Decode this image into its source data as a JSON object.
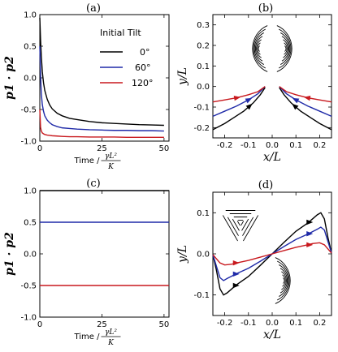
{
  "chart_data": [
    {
      "panel": "(a)",
      "type": "line",
      "ylabel": "p1 · p2",
      "xlabel": "Time /",
      "xlabel_frac": {
        "num": "γL²",
        "den": "K"
      },
      "xlim": [
        0,
        52
      ],
      "ylim": [
        -1.0,
        1.0
      ],
      "xticks": [
        "0",
        "25",
        "50"
      ],
      "yticks": [
        "1.0",
        "0.5",
        "0.0",
        "-0.5",
        "-1.0"
      ],
      "legend_title": "Initial Tilt",
      "legend_position": "top-right",
      "series": [
        {
          "name": "0°",
          "color": "#000000",
          "x": [
            0,
            0.3,
            0.6,
            1,
            1.5,
            2,
            3,
            4,
            5,
            7,
            9,
            12,
            15,
            20,
            25,
            30,
            35,
            40,
            45,
            50
          ],
          "y": [
            0.95,
            0.6,
            0.35,
            0.1,
            -0.08,
            -0.2,
            -0.34,
            -0.43,
            -0.49,
            -0.56,
            -0.6,
            -0.64,
            -0.66,
            -0.69,
            -0.71,
            -0.72,
            -0.73,
            -0.74,
            -0.745,
            -0.75
          ]
        },
        {
          "name": "60°",
          "color": "#1f2aa8",
          "x": [
            0,
            0.3,
            0.6,
            1,
            1.5,
            2,
            3,
            4,
            5,
            7,
            9,
            12,
            15,
            20,
            25,
            30,
            35,
            40,
            45,
            50
          ],
          "y": [
            0.5,
            0.05,
            -0.25,
            -0.42,
            -0.53,
            -0.6,
            -0.67,
            -0.71,
            -0.74,
            -0.77,
            -0.79,
            -0.8,
            -0.81,
            -0.82,
            -0.825,
            -0.83,
            -0.83,
            -0.835,
            -0.835,
            -0.84
          ]
        },
        {
          "name": "120°",
          "color": "#c8191e",
          "x": [
            0,
            0.3,
            0.6,
            1,
            1.5,
            2,
            3,
            4,
            5,
            7,
            9,
            12,
            15,
            20,
            25,
            30,
            35,
            40,
            45,
            50
          ],
          "y": [
            -0.5,
            -0.78,
            -0.84,
            -0.87,
            -0.885,
            -0.895,
            -0.905,
            -0.91,
            -0.915,
            -0.92,
            -0.925,
            -0.93,
            -0.93,
            -0.935,
            -0.935,
            -0.935,
            -0.94,
            -0.94,
            -0.94,
            -0.94
          ]
        }
      ]
    },
    {
      "panel": "(b)",
      "type": "line",
      "xlabel": "x/L",
      "ylabel": "y/L",
      "xlim": [
        -0.25,
        0.25
      ],
      "ylim": [
        -0.25,
        0.35
      ],
      "xticks": [
        "-0.2",
        "-0.1",
        "0.0",
        "0.1",
        "0.2"
      ],
      "yticks": [
        "0.3",
        "0.2",
        "0.1",
        "0.0",
        "-0.1",
        "-0.2"
      ],
      "series": [
        {
          "name": "",
          "color": "#000000",
          "arrow_at": 0.4,
          "x": [
            -0.03,
            -0.05,
            -0.08,
            -0.12,
            -0.16,
            -0.2,
            -0.25
          ],
          "y": [
            -0.005,
            -0.04,
            -0.08,
            -0.12,
            -0.15,
            -0.18,
            -0.21
          ]
        },
        {
          "name": "",
          "color": "#1f2aa8",
          "arrow_at": 0.4,
          "x": [
            -0.03,
            -0.06,
            -0.1,
            -0.15,
            -0.2,
            -0.25
          ],
          "y": [
            0.0,
            -0.035,
            -0.065,
            -0.095,
            -0.12,
            -0.145
          ]
        },
        {
          "name": "",
          "color": "#c8191e",
          "arrow_at": 0.6,
          "x": [
            -0.03,
            -0.06,
            -0.1,
            -0.15,
            -0.2,
            -0.25
          ],
          "y": [
            0.0,
            -0.025,
            -0.04,
            -0.055,
            -0.065,
            -0.075
          ]
        },
        {
          "name": "",
          "color": "#000000",
          "arrow_at": 0.4,
          "x": [
            0.03,
            0.05,
            0.08,
            0.12,
            0.16,
            0.2,
            0.25
          ],
          "y": [
            -0.005,
            -0.04,
            -0.08,
            -0.12,
            -0.15,
            -0.18,
            -0.21
          ]
        },
        {
          "name": "",
          "color": "#1f2aa8",
          "arrow_at": 0.4,
          "x": [
            0.03,
            0.06,
            0.1,
            0.15,
            0.2,
            0.25
          ],
          "y": [
            0.0,
            -0.035,
            -0.065,
            -0.095,
            -0.12,
            -0.145
          ]
        },
        {
          "name": "",
          "color": "#c8191e",
          "arrow_at": 0.6,
          "x": [
            0.03,
            0.06,
            0.1,
            0.15,
            0.2,
            0.25
          ],
          "y": [
            0.0,
            -0.025,
            -0.04,
            -0.055,
            -0.065,
            -0.075
          ]
        }
      ]
    },
    {
      "panel": "(c)",
      "type": "line",
      "ylabel": "p1 · p2",
      "xlabel": "Time /",
      "xlabel_frac": {
        "num": "γL²",
        "den": "K"
      },
      "xlim": [
        0,
        52
      ],
      "ylim": [
        -1.0,
        1.0
      ],
      "xticks": [
        "0",
        "25",
        "50"
      ],
      "yticks": [
        "1.0",
        "0.5",
        "0.0",
        "-0.5",
        "-1.0"
      ],
      "series": [
        {
          "name": "0°",
          "color": "#000000",
          "x": [
            0,
            52
          ],
          "y": [
            1.0,
            1.0
          ]
        },
        {
          "name": "60°",
          "color": "#1f2aa8",
          "x": [
            0,
            52
          ],
          "y": [
            0.5,
            0.5
          ]
        },
        {
          "name": "120°",
          "color": "#c8191e",
          "x": [
            0,
            52
          ],
          "y": [
            -0.5,
            -0.5
          ]
        }
      ]
    },
    {
      "panel": "(d)",
      "type": "line",
      "xlabel": "x/L",
      "ylabel": "y/L",
      "xlim": [
        -0.25,
        0.25
      ],
      "ylim": [
        -0.15,
        0.15
      ],
      "xticks": [
        "-0.2",
        "-0.1",
        "0.0",
        "0.1",
        "0.2"
      ],
      "yticks": [
        "0.1",
        "0.0",
        "-0.1"
      ],
      "series": [
        {
          "name": "",
          "color": "#000000",
          "x": [
            -0.25,
            -0.235,
            -0.22,
            -0.205,
            -0.19,
            -0.17,
            -0.15,
            -0.1,
            -0.05,
            0,
            0.05,
            0.1,
            0.15,
            0.17,
            0.19,
            0.205,
            0.22,
            0.235,
            0.25
          ],
          "y": [
            -0.002,
            -0.04,
            -0.085,
            -0.1,
            -0.095,
            -0.085,
            -0.075,
            -0.055,
            -0.028,
            0,
            0.028,
            0.055,
            0.075,
            0.085,
            0.095,
            0.1,
            0.085,
            0.04,
            0.002
          ]
        },
        {
          "name": "",
          "color": "#1f2aa8",
          "x": [
            -0.25,
            -0.235,
            -0.22,
            -0.205,
            -0.19,
            -0.17,
            -0.15,
            -0.1,
            -0.05,
            0,
            0.05,
            0.1,
            0.15,
            0.17,
            0.19,
            0.205,
            0.22,
            0.235,
            0.25
          ],
          "y": [
            -0.002,
            -0.03,
            -0.058,
            -0.065,
            -0.06,
            -0.054,
            -0.048,
            -0.035,
            -0.018,
            0,
            0.018,
            0.035,
            0.048,
            0.054,
            0.06,
            0.065,
            0.058,
            0.03,
            0.002
          ]
        },
        {
          "name": "",
          "color": "#c8191e",
          "x": [
            -0.25,
            -0.235,
            -0.22,
            -0.2,
            -0.17,
            -0.15,
            -0.1,
            -0.05,
            0,
            0.05,
            0.1,
            0.15,
            0.17,
            0.2,
            0.22,
            0.235,
            0.25
          ],
          "y": [
            -0.002,
            -0.012,
            -0.022,
            -0.027,
            -0.025,
            -0.022,
            -0.016,
            -0.008,
            0,
            0.008,
            0.016,
            0.022,
            0.025,
            0.027,
            0.022,
            0.012,
            0.002
          ]
        }
      ],
      "arrows": [
        {
          "color": "#000000",
          "x": -0.155,
          "y": -0.077,
          "dir": "right"
        },
        {
          "color": "#1f2aa8",
          "x": -0.155,
          "y": -0.049,
          "dir": "right"
        },
        {
          "color": "#c8191e",
          "x": -0.155,
          "y": -0.022,
          "dir": "right"
        },
        {
          "color": "#000000",
          "x": 0.155,
          "y": 0.077,
          "dir": "right"
        },
        {
          "color": "#1f2aa8",
          "x": 0.155,
          "y": 0.049,
          "dir": "right"
        },
        {
          "color": "#c8191e",
          "x": 0.155,
          "y": 0.022,
          "dir": "right"
        }
      ]
    }
  ]
}
